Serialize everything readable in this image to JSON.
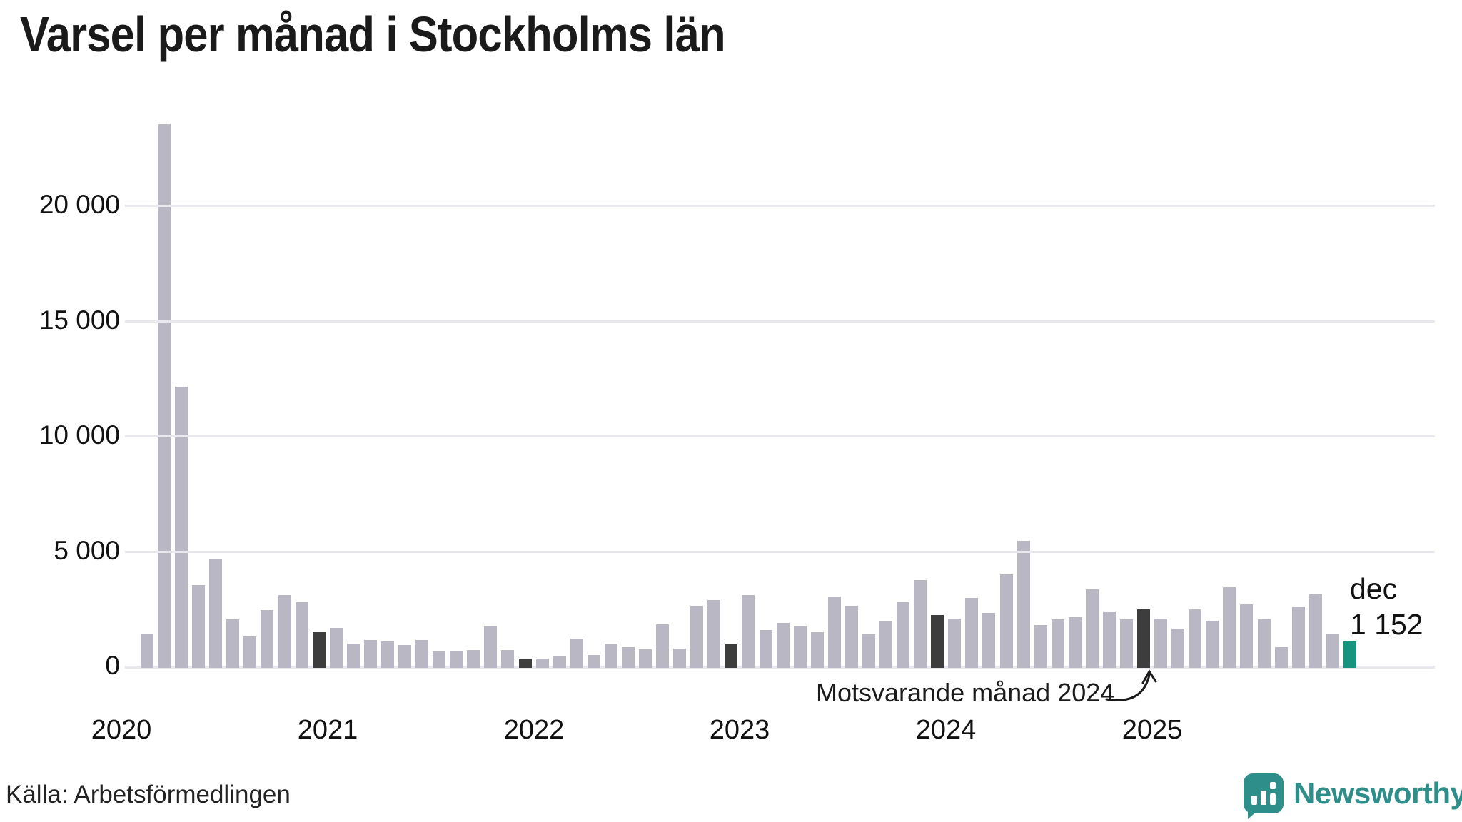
{
  "title": "Varsel per månad i Stockholms län",
  "source": "Källa: Arbetsförmedlingen",
  "annotation": "Motsvarande månad 2024",
  "current_label": {
    "line1": "dec",
    "line2": "1 152"
  },
  "logo_text": "Newsworthy",
  "colors": {
    "bar": "#b9b7c4",
    "bar_december": "#3d3d3d",
    "bar_current": "#17947f",
    "gridline": "#e9e8ee",
    "text": "#1a1a1a",
    "logo": "#2e8f8a"
  },
  "chart_data": {
    "type": "bar",
    "title": "Varsel per månad i Stockholms län",
    "xlabel": "",
    "ylabel": "",
    "ylim": [
      0,
      24000
    ],
    "grid": "horizontal",
    "legend": "none",
    "y_ticks": [
      {
        "value": 0,
        "label": "0"
      },
      {
        "value": 5000,
        "label": "5 000"
      },
      {
        "value": 10000,
        "label": "10 000"
      },
      {
        "value": 15000,
        "label": "15 000"
      },
      {
        "value": 20000,
        "label": "20 000"
      }
    ],
    "years": [
      "2020",
      "2021",
      "2022",
      "2023",
      "2024",
      "2025"
    ],
    "highlight_meaning": {
      "december": "Motsvarande månad 2024",
      "current": "dec 1 152"
    },
    "months": [
      {
        "month": "feb 2020",
        "value": 1500,
        "highlight": "none"
      },
      {
        "month": "mar 2020",
        "value": 23600,
        "highlight": "none"
      },
      {
        "month": "apr 2020",
        "value": 12200,
        "highlight": "none"
      },
      {
        "month": "maj 2020",
        "value": 3600,
        "highlight": "none"
      },
      {
        "month": "jun 2020",
        "value": 4700,
        "highlight": "none"
      },
      {
        "month": "jul 2020",
        "value": 2100,
        "highlight": "none"
      },
      {
        "month": "aug 2020",
        "value": 1350,
        "highlight": "none"
      },
      {
        "month": "sep 2020",
        "value": 2500,
        "highlight": "none"
      },
      {
        "month": "okt 2020",
        "value": 3150,
        "highlight": "none"
      },
      {
        "month": "nov 2020",
        "value": 2850,
        "highlight": "none"
      },
      {
        "month": "dec 2020",
        "value": 1550,
        "highlight": "december"
      },
      {
        "month": "jan 2021",
        "value": 1750,
        "highlight": "none"
      },
      {
        "month": "feb 2021",
        "value": 1050,
        "highlight": "none"
      },
      {
        "month": "mar 2021",
        "value": 1200,
        "highlight": "none"
      },
      {
        "month": "apr 2021",
        "value": 1150,
        "highlight": "none"
      },
      {
        "month": "maj 2021",
        "value": 1000,
        "highlight": "none"
      },
      {
        "month": "jun 2021",
        "value": 1200,
        "highlight": "none"
      },
      {
        "month": "jul 2021",
        "value": 700,
        "highlight": "none"
      },
      {
        "month": "aug 2021",
        "value": 730,
        "highlight": "none"
      },
      {
        "month": "sep 2021",
        "value": 760,
        "highlight": "none"
      },
      {
        "month": "okt 2021",
        "value": 1800,
        "highlight": "none"
      },
      {
        "month": "nov 2021",
        "value": 780,
        "highlight": "none"
      },
      {
        "month": "dec 2021",
        "value": 390,
        "highlight": "december"
      },
      {
        "month": "jan 2022",
        "value": 400,
        "highlight": "none"
      },
      {
        "month": "feb 2022",
        "value": 500,
        "highlight": "none"
      },
      {
        "month": "mar 2022",
        "value": 1280,
        "highlight": "none"
      },
      {
        "month": "apr 2022",
        "value": 550,
        "highlight": "none"
      },
      {
        "month": "maj 2022",
        "value": 1050,
        "highlight": "none"
      },
      {
        "month": "jun 2022",
        "value": 900,
        "highlight": "none"
      },
      {
        "month": "jul 2022",
        "value": 800,
        "highlight": "none"
      },
      {
        "month": "aug 2022",
        "value": 1900,
        "highlight": "none"
      },
      {
        "month": "sep 2022",
        "value": 850,
        "highlight": "none"
      },
      {
        "month": "okt 2022",
        "value": 2700,
        "highlight": "none"
      },
      {
        "month": "nov 2022",
        "value": 2950,
        "highlight": "none"
      },
      {
        "month": "dec 2022",
        "value": 1030,
        "highlight": "december"
      },
      {
        "month": "jan 2023",
        "value": 3150,
        "highlight": "none"
      },
      {
        "month": "feb 2023",
        "value": 1650,
        "highlight": "none"
      },
      {
        "month": "mar 2023",
        "value": 1950,
        "highlight": "none"
      },
      {
        "month": "apr 2023",
        "value": 1800,
        "highlight": "none"
      },
      {
        "month": "maj 2023",
        "value": 1550,
        "highlight": "none"
      },
      {
        "month": "jun 2023",
        "value": 3100,
        "highlight": "none"
      },
      {
        "month": "jul 2023",
        "value": 2700,
        "highlight": "none"
      },
      {
        "month": "aug 2023",
        "value": 1450,
        "highlight": "none"
      },
      {
        "month": "sep 2023",
        "value": 2050,
        "highlight": "none"
      },
      {
        "month": "okt 2023",
        "value": 2850,
        "highlight": "none"
      },
      {
        "month": "nov 2023",
        "value": 3800,
        "highlight": "none"
      },
      {
        "month": "dec 2023",
        "value": 2300,
        "highlight": "december"
      },
      {
        "month": "jan 2024",
        "value": 2150,
        "highlight": "none"
      },
      {
        "month": "feb 2024",
        "value": 3050,
        "highlight": "none"
      },
      {
        "month": "mar 2024",
        "value": 2400,
        "highlight": "none"
      },
      {
        "month": "apr 2024",
        "value": 4050,
        "highlight": "none"
      },
      {
        "month": "maj 2024",
        "value": 5500,
        "highlight": "none"
      },
      {
        "month": "jun 2024",
        "value": 1850,
        "highlight": "none"
      },
      {
        "month": "jul 2024",
        "value": 2100,
        "highlight": "none"
      },
      {
        "month": "aug 2024",
        "value": 2200,
        "highlight": "none"
      },
      {
        "month": "sep 2024",
        "value": 3400,
        "highlight": "none"
      },
      {
        "month": "okt 2024",
        "value": 2450,
        "highlight": "none"
      },
      {
        "month": "nov 2024",
        "value": 2100,
        "highlight": "none"
      },
      {
        "month": "dec 2024",
        "value": 2550,
        "highlight": "december"
      },
      {
        "month": "jan 2025",
        "value": 2150,
        "highlight": "none"
      },
      {
        "month": "feb 2025",
        "value": 1700,
        "highlight": "none"
      },
      {
        "month": "mar 2025",
        "value": 2550,
        "highlight": "none"
      },
      {
        "month": "apr 2025",
        "value": 2050,
        "highlight": "none"
      },
      {
        "month": "maj 2025",
        "value": 3500,
        "highlight": "none"
      },
      {
        "month": "jun 2025",
        "value": 2750,
        "highlight": "none"
      },
      {
        "month": "jul 2025",
        "value": 2100,
        "highlight": "none"
      },
      {
        "month": "aug 2025",
        "value": 900,
        "highlight": "none"
      },
      {
        "month": "sep 2025",
        "value": 2650,
        "highlight": "none"
      },
      {
        "month": "okt 2025",
        "value": 3200,
        "highlight": "none"
      },
      {
        "month": "nov 2025",
        "value": 1500,
        "highlight": "none"
      },
      {
        "month": "dec 2025",
        "value": 1152,
        "highlight": "current"
      }
    ]
  }
}
